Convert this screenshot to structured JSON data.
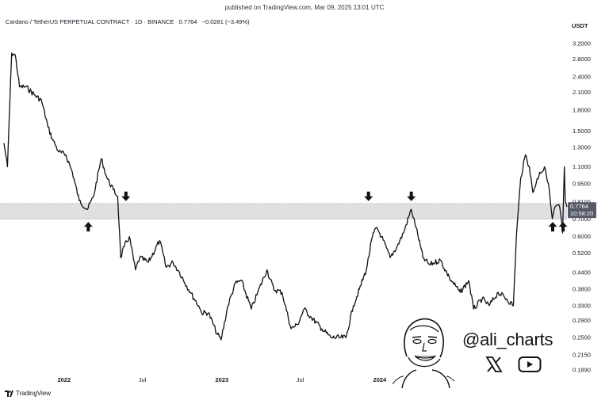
{
  "header": {
    "published": "published on TradingView.com, Mar 09, 2025 13:01 UTC",
    "instrument": "Cardano / TetherUS PERPETUAL CONTRACT · 1D · BINANCE",
    "last": "0.7764",
    "change": "−0.0281 (−3.49%)"
  },
  "chart_data": {
    "type": "line",
    "y_unit": "USDT",
    "y_scale": "log",
    "ylim": [
      0.185,
      3.5
    ],
    "xlim": [
      "2021-08-15",
      "2025-03-09"
    ],
    "y_ticks": [
      "3.2000",
      "2.8000",
      "2.4000",
      "2.1000",
      "1.8000",
      "1.5000",
      "1.3000",
      "1.1000",
      "0.9500",
      "0.8100",
      "0.7000",
      "0.6000",
      "0.5200",
      "0.4400",
      "0.3800",
      "0.3300",
      "0.2900",
      "0.2500",
      "0.2150",
      "0.1890"
    ],
    "x_ticks": [
      {
        "label": "2022",
        "date": "2022-01-01",
        "year": true
      },
      {
        "label": "Jul",
        "date": "2022-07-01",
        "year": false
      },
      {
        "label": "2023",
        "date": "2023-01-01",
        "year": true
      },
      {
        "label": "Jul",
        "date": "2023-07-01",
        "year": false
      },
      {
        "label": "2024",
        "date": "2024-01-01",
        "year": true
      }
    ],
    "support_zone": [
      0.7,
      0.8
    ],
    "last_price_label": "0.7764",
    "countdown_label": "10:58:20",
    "series": [
      {
        "values": [
          [
            "2021-08-15",
            1.35
          ],
          [
            "2021-08-23",
            1.1
          ],
          [
            "2021-09-02",
            2.95
          ],
          [
            "2021-09-10",
            2.9
          ],
          [
            "2021-09-20",
            2.2
          ],
          [
            "2021-10-05",
            2.2
          ],
          [
            "2021-10-25",
            2.05
          ],
          [
            "2021-11-10",
            1.95
          ],
          [
            "2021-11-25",
            1.55
          ],
          [
            "2021-12-05",
            1.4
          ],
          [
            "2021-12-20",
            1.25
          ],
          [
            "2022-01-05",
            1.22
          ],
          [
            "2022-01-20",
            1.05
          ],
          [
            "2022-02-05",
            0.82
          ],
          [
            "2022-02-24",
            0.76
          ],
          [
            "2022-03-10",
            0.85
          ],
          [
            "2022-03-28",
            1.18
          ],
          [
            "2022-04-10",
            1.0
          ],
          [
            "2022-04-25",
            0.9
          ],
          [
            "2022-05-05",
            0.85
          ],
          [
            "2022-05-12",
            0.5
          ],
          [
            "2022-05-20",
            0.55
          ],
          [
            "2022-06-01",
            0.6
          ],
          [
            "2022-06-15",
            0.45
          ],
          [
            "2022-06-25",
            0.5
          ],
          [
            "2022-07-15",
            0.48
          ],
          [
            "2022-08-10",
            0.58
          ],
          [
            "2022-08-25",
            0.46
          ],
          [
            "2022-09-10",
            0.48
          ],
          [
            "2022-09-25",
            0.44
          ],
          [
            "2022-10-20",
            0.37
          ],
          [
            "2022-11-08",
            0.33
          ],
          [
            "2022-11-15",
            0.31
          ],
          [
            "2022-12-01",
            0.31
          ],
          [
            "2022-12-20",
            0.26
          ],
          [
            "2022-12-30",
            0.245
          ],
          [
            "2023-01-15",
            0.33
          ],
          [
            "2023-02-01",
            0.4
          ],
          [
            "2023-02-15",
            0.41
          ],
          [
            "2023-03-10",
            0.32
          ],
          [
            "2023-03-25",
            0.37
          ],
          [
            "2023-04-15",
            0.45
          ],
          [
            "2023-05-01",
            0.38
          ],
          [
            "2023-05-20",
            0.37
          ],
          [
            "2023-06-10",
            0.27
          ],
          [
            "2023-06-25",
            0.28
          ],
          [
            "2023-07-10",
            0.32
          ],
          [
            "2023-07-25",
            0.3
          ],
          [
            "2023-08-20",
            0.27
          ],
          [
            "2023-09-10",
            0.25
          ],
          [
            "2023-10-01",
            0.25
          ],
          [
            "2023-10-15",
            0.25
          ],
          [
            "2023-11-01",
            0.33
          ],
          [
            "2023-11-15",
            0.38
          ],
          [
            "2023-12-01",
            0.45
          ],
          [
            "2023-12-15",
            0.6
          ],
          [
            "2023-12-25",
            0.65
          ],
          [
            "2024-01-05",
            0.6
          ],
          [
            "2024-01-25",
            0.5
          ],
          [
            "2024-02-10",
            0.55
          ],
          [
            "2024-02-25",
            0.62
          ],
          [
            "2024-03-14",
            0.76
          ],
          [
            "2024-03-25",
            0.65
          ],
          [
            "2024-04-10",
            0.5
          ],
          [
            "2024-04-25",
            0.47
          ],
          [
            "2024-05-20",
            0.49
          ],
          [
            "2024-06-10",
            0.42
          ],
          [
            "2024-07-05",
            0.37
          ],
          [
            "2024-07-25",
            0.41
          ],
          [
            "2024-08-05",
            0.32
          ],
          [
            "2024-08-25",
            0.35
          ],
          [
            "2024-09-10",
            0.33
          ],
          [
            "2024-10-01",
            0.37
          ],
          [
            "2024-10-20",
            0.35
          ],
          [
            "2024-11-05",
            0.33
          ],
          [
            "2024-11-12",
            0.6
          ],
          [
            "2024-11-22",
            1.0
          ],
          [
            "2024-12-03",
            1.22
          ],
          [
            "2024-12-12",
            1.1
          ],
          [
            "2024-12-20",
            0.88
          ],
          [
            "2025-01-05",
            1.05
          ],
          [
            "2025-01-18",
            1.08
          ],
          [
            "2025-01-25",
            0.95
          ],
          [
            "2025-02-03",
            0.7
          ],
          [
            "2025-02-10",
            0.78
          ],
          [
            "2025-02-20",
            0.78
          ],
          [
            "2025-02-27",
            0.62
          ],
          [
            "2025-03-03",
            1.1
          ],
          [
            "2025-03-05",
            0.82
          ],
          [
            "2025-03-09",
            0.7764
          ]
        ]
      }
    ],
    "arrows": [
      {
        "date": "2022-02-26",
        "dir": "up"
      },
      {
        "date": "2022-05-24",
        "dir": "down"
      },
      {
        "date": "2023-12-06",
        "dir": "down"
      },
      {
        "date": "2024-03-14",
        "dir": "down"
      },
      {
        "date": "2025-02-04",
        "dir": "up"
      },
      {
        "date": "2025-02-28",
        "dir": "up"
      }
    ]
  },
  "watermark": {
    "handle": "@ali_charts",
    "social_icons": [
      "x-logo-icon",
      "youtube-icon"
    ]
  },
  "footer": {
    "brand": "TradingView",
    "logo_icon": "tradingview-logo-icon"
  },
  "colors": {
    "line": "#111111",
    "zone": "#e0e0e3",
    "zone_border": "#b8b8be",
    "label_bg": "#555a66"
  }
}
